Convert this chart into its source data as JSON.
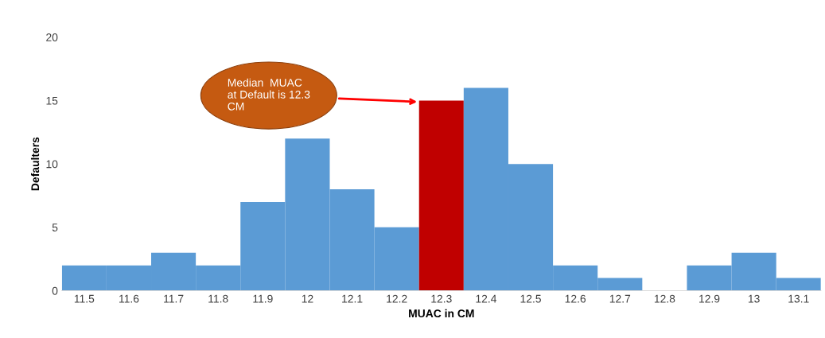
{
  "chart_data": {
    "type": "bar",
    "xlabel": "MUAC in CM",
    "ylabel": "Defaulters",
    "categories": [
      "11.5",
      "11.6",
      "11.7",
      "11.8",
      "11.9",
      "12",
      "12.1",
      "12.2",
      "12.3",
      "12.4",
      "12.5",
      "12.6",
      "12.7",
      "12.8",
      "12.9",
      "13",
      "13.1"
    ],
    "values": [
      2,
      2,
      3,
      2,
      7,
      12,
      8,
      5,
      15,
      16,
      10,
      2,
      1,
      0,
      2,
      3,
      1
    ],
    "colors": [
      "#5b9bd5",
      "#5b9bd5",
      "#5b9bd5",
      "#5b9bd5",
      "#5b9bd5",
      "#5b9bd5",
      "#5b9bd5",
      "#5b9bd5",
      "#c00000",
      "#5b9bd5",
      "#5b9bd5",
      "#5b9bd5",
      "#5b9bd5",
      "#5b9bd5",
      "#5b9bd5",
      "#5b9bd5",
      "#5b9bd5"
    ],
    "ylim": [
      0,
      20
    ],
    "yticks": [
      0,
      5,
      10,
      15,
      20
    ],
    "annotations": [
      "Median  MUAC\nat Default is 12.3\nCM"
    ]
  }
}
